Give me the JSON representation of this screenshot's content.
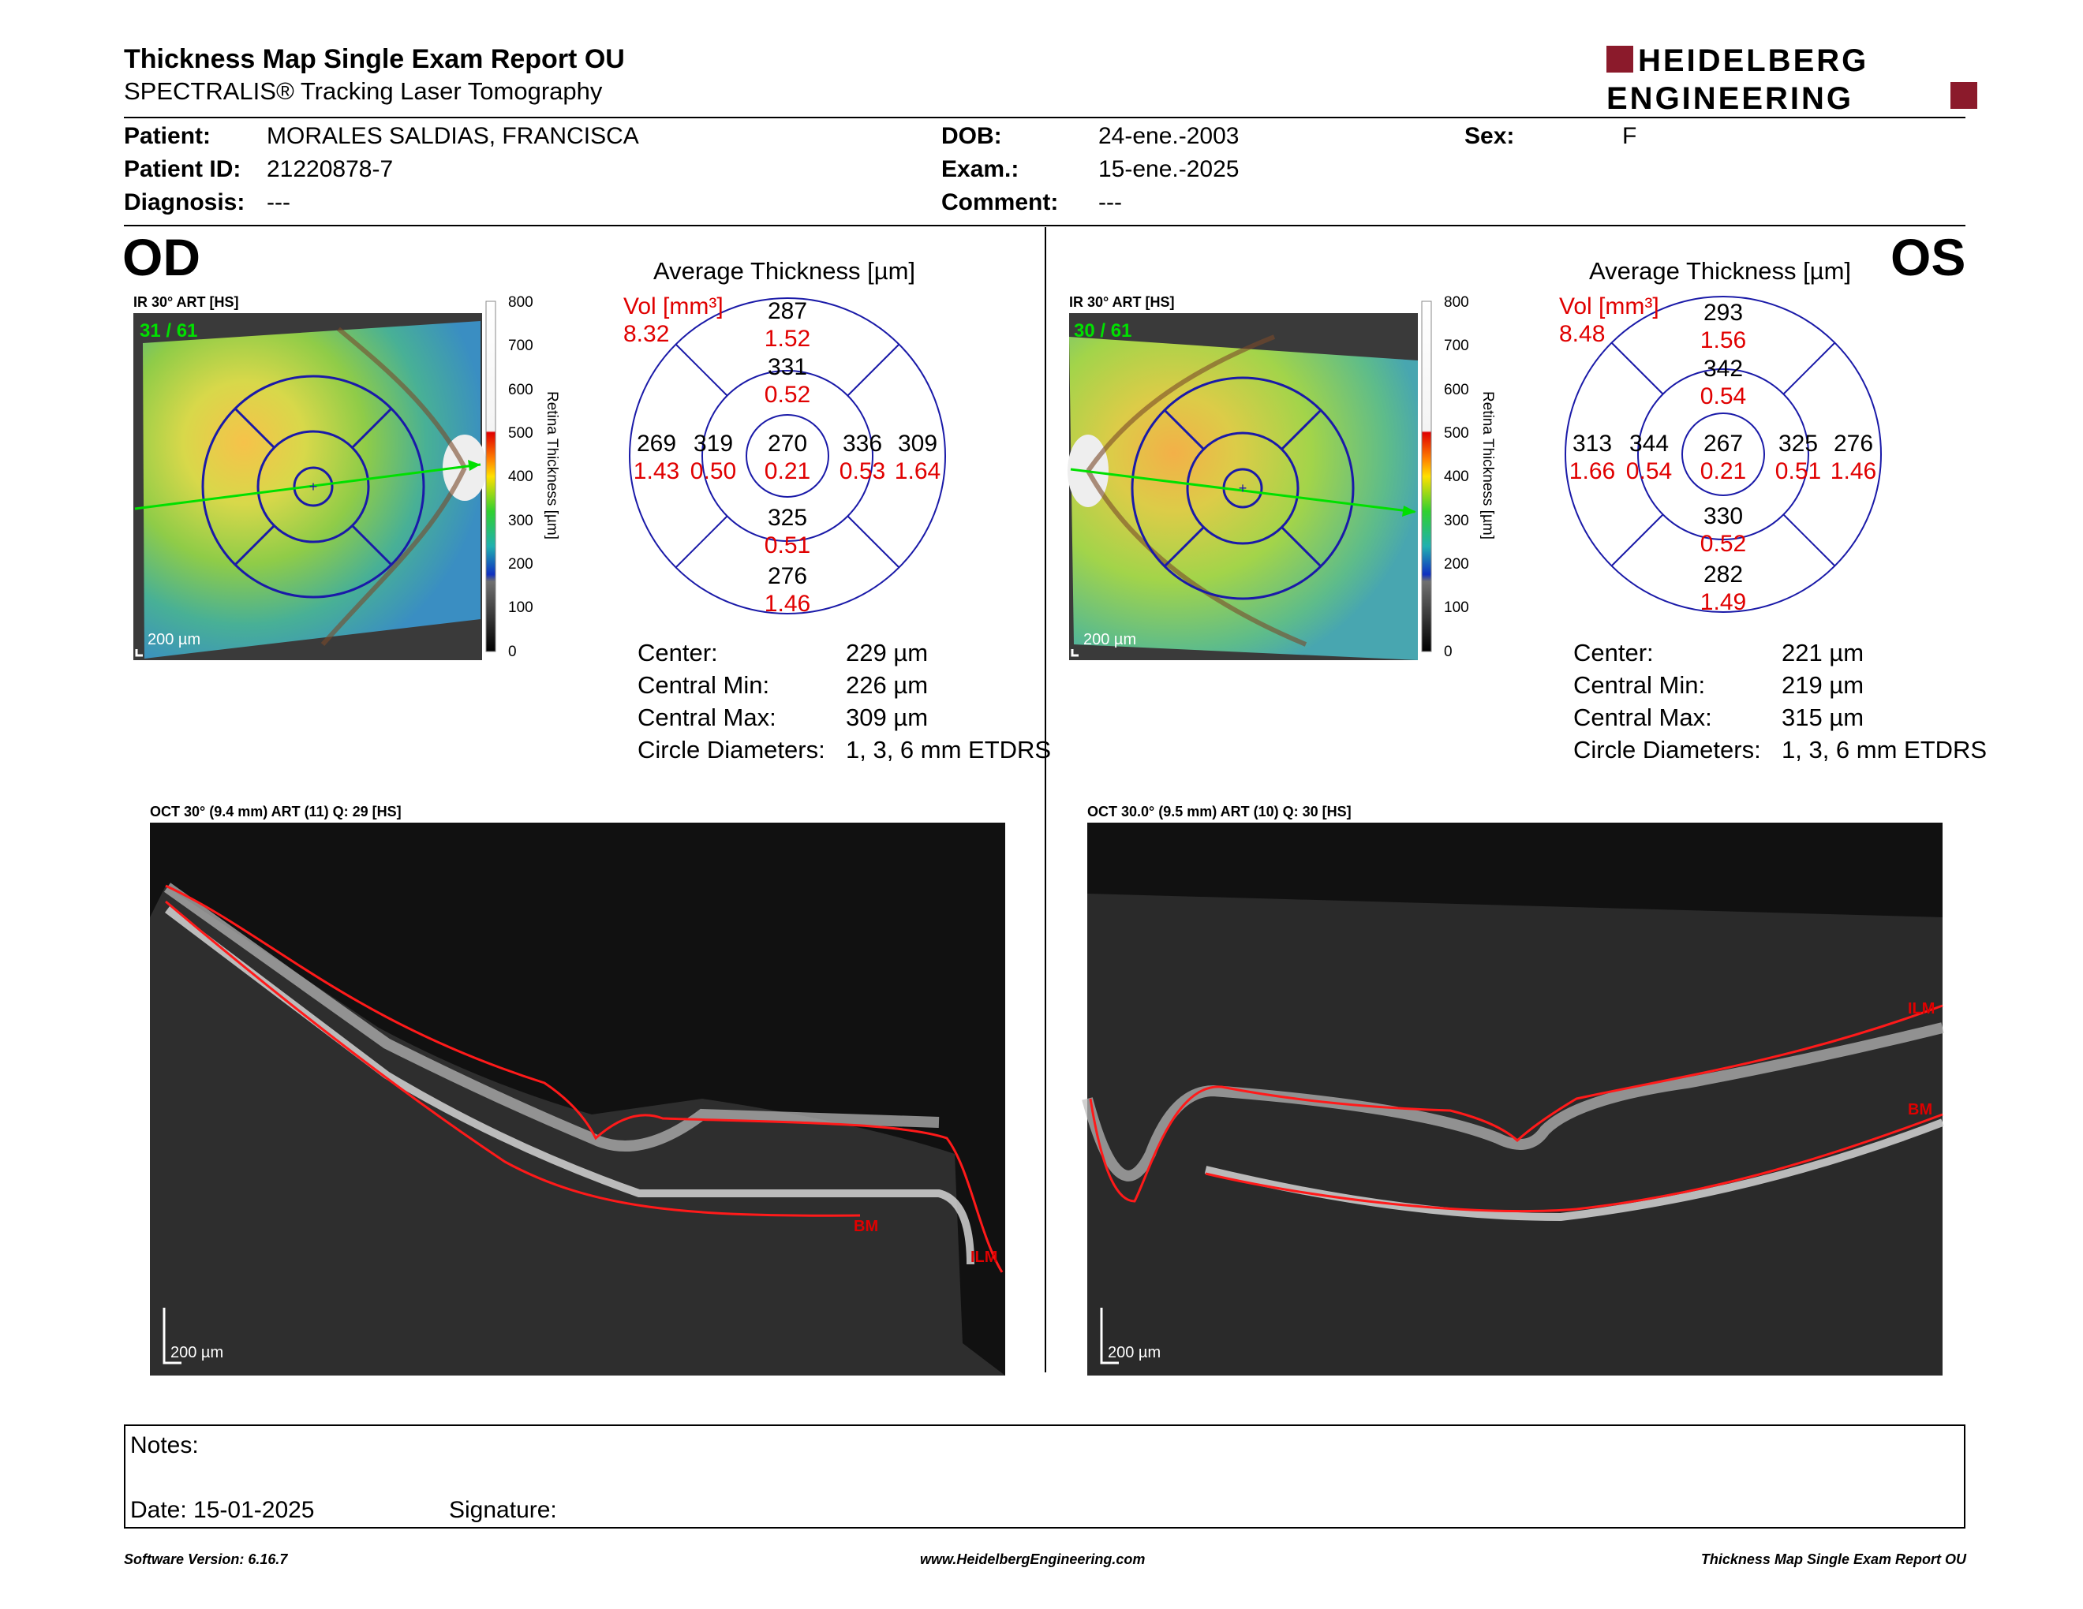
{
  "header": {
    "title": "Thickness Map Single Exam Report OU",
    "subtitle": "SPECTRALIS® Tracking Laser Tomography",
    "logo_line1": "HEIDELBERG",
    "logo_line2": "ENGINEERING"
  },
  "patient": {
    "patient_label": "Patient:",
    "patient_value": "MORALES SALDIAS, FRANCISCA",
    "id_label": "Patient ID:",
    "id_value": "21220878-7",
    "diagnosis_label": "Diagnosis:",
    "diagnosis_value": "---",
    "dob_label": "DOB:",
    "dob_value": "24-ene.-2003",
    "exam_label": "Exam.:",
    "exam_value": "15-ene.-2025",
    "comment_label": "Comment:",
    "comment_value": "---",
    "sex_label": "Sex:",
    "sex_value": "F"
  },
  "od": {
    "eye": "OD",
    "ir_label": "IR 30° ART [HS]",
    "frames": "31 / 61",
    "scale": "200 µm",
    "colorbar_ticks": [
      "800",
      "700",
      "600",
      "500",
      "400",
      "300",
      "200",
      "100",
      "0"
    ],
    "colorbar_title": "Retina Thickness [µm]",
    "chart_title": "Average Thickness [µm]",
    "vol_label": "Vol [mm³]",
    "vol_value": "8.32",
    "sectors": {
      "outer_sup": [
        "287",
        "1.52"
      ],
      "inner_sup": [
        "331",
        "0.52"
      ],
      "outer_temp": [
        "269",
        "1.43"
      ],
      "inner_temp": [
        "319",
        "0.50"
      ],
      "center": [
        "270",
        "0.21"
      ],
      "inner_nas": [
        "336",
        "0.53"
      ],
      "outer_nas": [
        "309",
        "1.64"
      ],
      "inner_inf": [
        "325",
        "0.51"
      ],
      "outer_inf": [
        "276",
        "1.46"
      ]
    },
    "stats": [
      {
        "label": "Center:",
        "value": "229 µm"
      },
      {
        "label": "Central Min:",
        "value": "226 µm"
      },
      {
        "label": "Central Max:",
        "value": "309 µm"
      },
      {
        "label": "Circle Diameters:",
        "value": "1, 3, 6 mm ETDRS"
      }
    ],
    "oct_label": "OCT 30° (9.4 mm) ART (11) Q: 29 [HS]",
    "oct_scale": "200 µm",
    "ilm": "ILM",
    "bm": "BM"
  },
  "os": {
    "eye": "OS",
    "ir_label": "IR 30° ART [HS]",
    "frames": "30 / 61",
    "scale": "200 µm",
    "colorbar_ticks": [
      "800",
      "700",
      "600",
      "500",
      "400",
      "300",
      "200",
      "100",
      "0"
    ],
    "colorbar_title": "Retina Thickness [µm]",
    "chart_title": "Average Thickness [µm]",
    "vol_label": "Vol [mm³]",
    "vol_value": "8.48",
    "sectors": {
      "outer_sup": [
        "293",
        "1.56"
      ],
      "inner_sup": [
        "342",
        "0.54"
      ],
      "outer_temp": [
        "313",
        "1.66"
      ],
      "inner_temp": [
        "344",
        "0.54"
      ],
      "center": [
        "267",
        "0.21"
      ],
      "inner_nas": [
        "325",
        "0.51"
      ],
      "outer_nas": [
        "276",
        "1.46"
      ],
      "inner_inf": [
        "330",
        "0.52"
      ],
      "outer_inf": [
        "282",
        "1.49"
      ]
    },
    "stats": [
      {
        "label": "Center:",
        "value": "221 µm"
      },
      {
        "label": "Central Min:",
        "value": "219 µm"
      },
      {
        "label": "Central Max:",
        "value": "315 µm"
      },
      {
        "label": "Circle Diameters:",
        "value": "1, 3, 6 mm ETDRS"
      }
    ],
    "oct_label": "OCT 30.0° (9.5 mm) ART (10) Q: 30 [HS]",
    "oct_scale": "200 µm",
    "ilm": "ILM",
    "bm": "BM"
  },
  "notes": {
    "notes_label": "Notes:",
    "date_label": "Date: 15-01-2025",
    "signature_label": "Signature:"
  },
  "footer": {
    "software": "Software Version: 6.16.7",
    "website": "www.HeidelbergEngineering.com",
    "report": "Thickness Map Single Exam Report OU"
  },
  "colors": {
    "accent_red": "#8b1a2b",
    "value_red": "#e00000",
    "ring_blue": "#1a1aa8",
    "arrow_green": "#00e000"
  }
}
